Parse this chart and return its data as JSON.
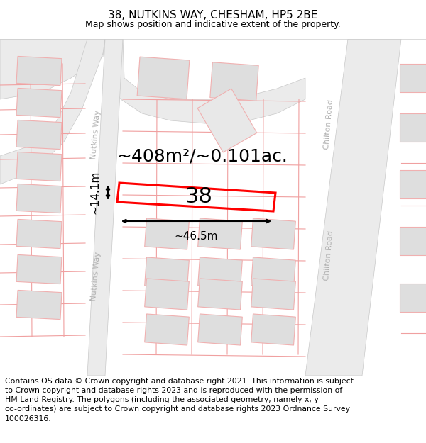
{
  "title": "38, NUTKINS WAY, CHESHAM, HP5 2BE",
  "subtitle": "Map shows position and indicative extent of the property.",
  "footer": "Contains OS data © Crown copyright and database right 2021. This information is subject\nto Crown copyright and database rights 2023 and is reproduced with the permission of\nHM Land Registry. The polygons (including the associated geometry, namely x, y\nco-ordinates) are subject to Crown copyright and database rights 2023 Ordnance Survey\n100026316.",
  "area_label": "~408m²/~0.101ac.",
  "width_label": "~46.5m",
  "height_label": "~14.1m",
  "number_label": "38",
  "map_bg": "#ffffff",
  "road_fill": "#ebebeb",
  "road_edge": "#c8c8c8",
  "property_color": "#ff0000",
  "building_fill": "#dedede",
  "building_edge": "#f0b0b0",
  "pink_line": "#f0a0a0",
  "street_label_color": "#b0b0b0",
  "title_fontsize": 11,
  "subtitle_fontsize": 9,
  "footer_fontsize": 7.8,
  "area_fontsize": 18,
  "dim_fontsize": 11,
  "prop_num_fontsize": 22,
  "street_fontsize": 8
}
